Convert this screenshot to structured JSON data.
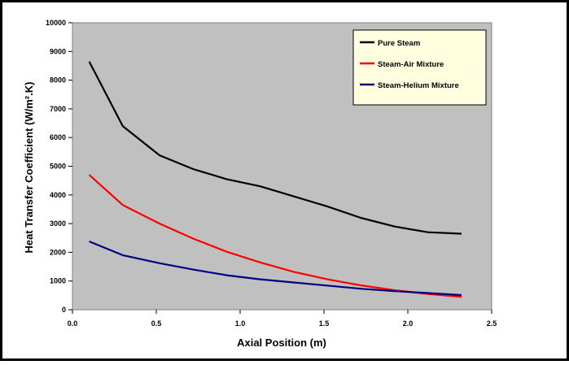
{
  "colors": {
    "plot_area": "#c0c0c0",
    "pure_steam": "#000000",
    "steam_air": "#ff0000",
    "steam_helium": "#000080"
  },
  "chart_data": {
    "type": "line",
    "title": "",
    "xlabel": "Axial Position (m)",
    "ylabel": "Heat Transfer Coefficient (W/m².K)",
    "xlim": [
      0,
      2.5
    ],
    "ylim": [
      0,
      10000
    ],
    "xticks": [
      "0.0",
      "0.5",
      "1.0",
      "1.5",
      "2.0",
      "2.5"
    ],
    "yticks": [
      "0",
      "1000",
      "2000",
      "3000",
      "4000",
      "5000",
      "6000",
      "7000",
      "8000",
      "9000",
      "10000"
    ],
    "grid": false,
    "legend_position": "top-right",
    "series": [
      {
        "name": "Pure Steam",
        "color": "#000000",
        "x": [
          0.1,
          0.3,
          0.52,
          0.72,
          0.92,
          1.12,
          1.32,
          1.52,
          1.72,
          1.92,
          2.12,
          2.32
        ],
        "y": [
          8650,
          6400,
          5380,
          4900,
          4550,
          4300,
          3950,
          3600,
          3200,
          2900,
          2700,
          2650
        ]
      },
      {
        "name": "Steam-Air Mixture",
        "color": "#ff0000",
        "x": [
          0.1,
          0.3,
          0.52,
          0.72,
          0.92,
          1.12,
          1.32,
          1.52,
          1.72,
          1.92,
          2.12,
          2.32
        ],
        "y": [
          4700,
          3650,
          3000,
          2480,
          2020,
          1650,
          1320,
          1060,
          850,
          680,
          550,
          450
        ]
      },
      {
        "name": "Steam-Helium Mixture",
        "color": "#000080",
        "x": [
          0.1,
          0.3,
          0.52,
          0.72,
          0.92,
          1.12,
          1.32,
          1.52,
          1.72,
          1.92,
          2.12,
          2.32
        ],
        "y": [
          2380,
          1900,
          1620,
          1400,
          1200,
          1060,
          950,
          840,
          730,
          650,
          580,
          510
        ]
      }
    ]
  }
}
